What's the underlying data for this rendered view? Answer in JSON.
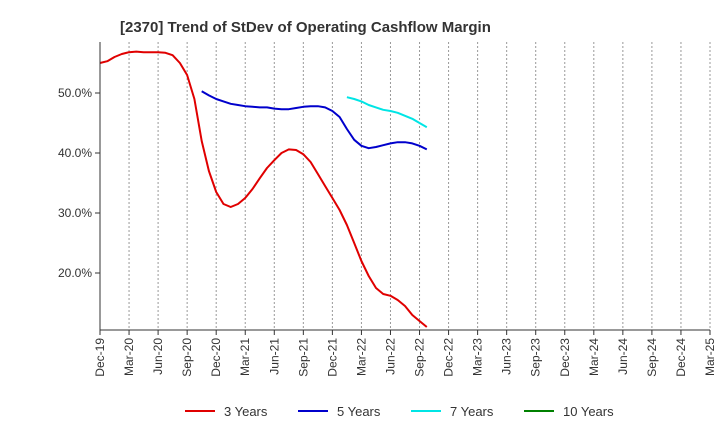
{
  "chart_data": {
    "type": "line",
    "title": "[2370]  Trend of StDev of Operating Cashflow Margin",
    "xlabel": "",
    "ylabel": "",
    "x": [
      "Dec-19",
      "Mar-20",
      "Jun-20",
      "Sep-20",
      "Dec-20",
      "Mar-21",
      "Jun-21",
      "Sep-21",
      "Dec-21",
      "Mar-22",
      "Jun-22",
      "Sep-22",
      "Dec-22",
      "Mar-23",
      "Jun-23",
      "Sep-23",
      "Dec-23",
      "Mar-24",
      "Jun-24",
      "Sep-24",
      "Dec-24",
      "Mar-25"
    ],
    "y_ticks": [
      "20.0%",
      "30.0%",
      "40.0%",
      "50.0%"
    ],
    "ylim": [
      10.5,
      58.5
    ],
    "grid": {
      "x": "dashed-vertical",
      "y": false
    },
    "legend_position": "bottom",
    "series": [
      {
        "name": "3 Years",
        "color": "#e00000",
        "points": [
          [
            0,
            55.0
          ],
          [
            0.5,
            55.3
          ],
          [
            1,
            56.0
          ],
          [
            1.5,
            56.5
          ],
          [
            2,
            56.8
          ],
          [
            2.5,
            56.9
          ],
          [
            3,
            56.8
          ],
          [
            3.5,
            56.8
          ],
          [
            4,
            56.8
          ],
          [
            4.5,
            56.7
          ],
          [
            5,
            56.3
          ],
          [
            5.5,
            55.0
          ],
          [
            6,
            53.0
          ],
          [
            6.5,
            49.0
          ],
          [
            7,
            42.0
          ],
          [
            7.5,
            37.0
          ],
          [
            8,
            33.5
          ],
          [
            8.5,
            31.5
          ],
          [
            9,
            31.0
          ],
          [
            9.5,
            31.5
          ],
          [
            10,
            32.5
          ],
          [
            10.5,
            34.0
          ],
          [
            11,
            35.8
          ],
          [
            11.5,
            37.5
          ],
          [
            12,
            38.8
          ],
          [
            12.5,
            40.0
          ],
          [
            13,
            40.6
          ],
          [
            13.5,
            40.5
          ],
          [
            14,
            39.8
          ],
          [
            14.5,
            38.5
          ],
          [
            15,
            36.5
          ],
          [
            15.5,
            34.5
          ],
          [
            16,
            32.5
          ],
          [
            16.5,
            30.5
          ],
          [
            17,
            28.0
          ],
          [
            17.5,
            25.0
          ],
          [
            18,
            22.0
          ],
          [
            18.5,
            19.5
          ],
          [
            19,
            17.5
          ],
          [
            19.5,
            16.5
          ],
          [
            20,
            16.2
          ],
          [
            20.5,
            15.5
          ],
          [
            21,
            14.5
          ],
          [
            21.5,
            13.0
          ],
          [
            22,
            12.0
          ],
          [
            22.5,
            11.0
          ]
        ]
      },
      {
        "name": "5 Years",
        "color": "#0000cc",
        "points": [
          [
            7,
            50.3
          ],
          [
            7.5,
            49.6
          ],
          [
            8,
            49.0
          ],
          [
            8.5,
            48.6
          ],
          [
            9,
            48.2
          ],
          [
            9.5,
            48.0
          ],
          [
            10,
            47.8
          ],
          [
            10.5,
            47.7
          ],
          [
            11,
            47.6
          ],
          [
            11.5,
            47.6
          ],
          [
            12,
            47.4
          ],
          [
            12.5,
            47.3
          ],
          [
            13,
            47.3
          ],
          [
            13.5,
            47.5
          ],
          [
            14,
            47.7
          ],
          [
            14.5,
            47.8
          ],
          [
            15,
            47.8
          ],
          [
            15.5,
            47.6
          ],
          [
            16,
            47.0
          ],
          [
            16.5,
            46.0
          ],
          [
            17,
            44.0
          ],
          [
            17.5,
            42.2
          ],
          [
            18,
            41.2
          ],
          [
            18.5,
            40.8
          ],
          [
            19,
            41.0
          ],
          [
            19.5,
            41.3
          ],
          [
            20,
            41.6
          ],
          [
            20.5,
            41.8
          ],
          [
            21,
            41.8
          ],
          [
            21.5,
            41.6
          ],
          [
            22,
            41.2
          ],
          [
            22.5,
            40.6
          ]
        ]
      },
      {
        "name": "7 Years",
        "color": "#00e5e5",
        "points": [
          [
            17,
            49.3
          ],
          [
            17.5,
            49.0
          ],
          [
            18,
            48.6
          ],
          [
            18.5,
            48.0
          ],
          [
            19,
            47.6
          ],
          [
            19.5,
            47.2
          ],
          [
            20,
            47.0
          ],
          [
            20.5,
            46.7
          ],
          [
            21,
            46.2
          ],
          [
            21.5,
            45.7
          ],
          [
            22,
            45.0
          ],
          [
            22.5,
            44.3
          ]
        ]
      },
      {
        "name": "10 Years",
        "color": "#008000",
        "points": []
      }
    ]
  }
}
